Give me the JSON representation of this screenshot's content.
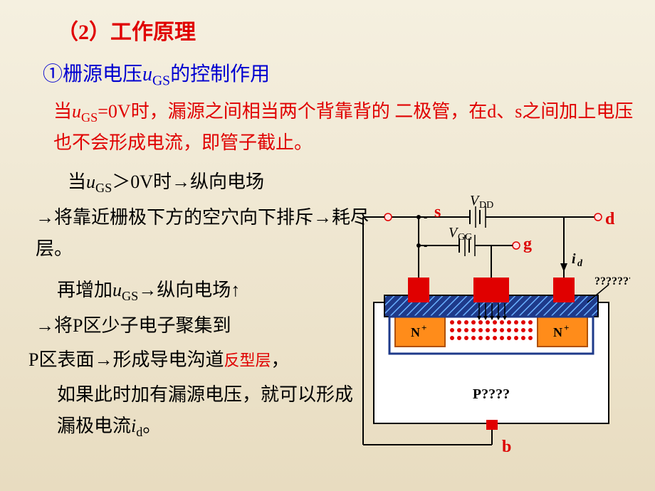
{
  "title": "（2）工作原理",
  "subtitle_pre": "①栅源电压",
  "subtitle_var": "u",
  "subtitle_sub": "GS",
  "subtitle_post": "的控制作用",
  "para1_a": "当",
  "para1_var": "u",
  "para1_sub": "GS",
  "para1_b": "=0V时，漏源之间相当两个背靠背的 二极管，在d、s之间加上电压也不会形成电流，即管子截止。",
  "line1_a": "当",
  "line1_var": "u",
  "line1_sub": "GS",
  "line1_b": "＞0V时→纵向电场",
  "line2": "→将靠近栅极下方的空穴向下排斥→耗尽层。",
  "line3_a": "再增加",
  "line3_var": "u",
  "line3_sub": "GS",
  "line3_b": "→纵向电场↑",
  "line4": "→将P区少子电子聚集到",
  "line5_a": "P区表面→形成导电沟道",
  "line5_red": "反型层",
  "line5_b": "，",
  "line6_a": "如果此时加有漏源电压，就可以形成漏极电流",
  "line6_var": "i",
  "line6_sub": "d",
  "line6_b": "。",
  "diagram": {
    "labels": {
      "s": "s",
      "d": "d",
      "g": "g",
      "b": "b",
      "Vdd": "V",
      "Vdd_sub": "DD",
      "Vgg": "V",
      "Vgg_sub": "GG",
      "id": "i",
      "id_sub": "d",
      "Nplus_l": "N",
      "Nplus_r": "N",
      "plus": "+",
      "P": "P????",
      "unknown": "????????"
    },
    "colors": {
      "wire": "#000000",
      "label_red": "#dd0000",
      "label_black": "#000000",
      "insulator_fill": "#1e3a8a",
      "insulator_hatch": "#6ab0ff",
      "nregion_fill": "#ff8c1a",
      "nregion_border": "#b05000",
      "gate_fill": "#e00000",
      "substrate_border": "#000000",
      "substrate_fill": "#ffffff",
      "dot": "#e00000",
      "arrow": "#000000",
      "terminal_ring": "#e00000",
      "terminal_fill": "#ffe0e0"
    },
    "stroke_width": 2,
    "font_size_label": 22,
    "font_size_sub": 14
  }
}
